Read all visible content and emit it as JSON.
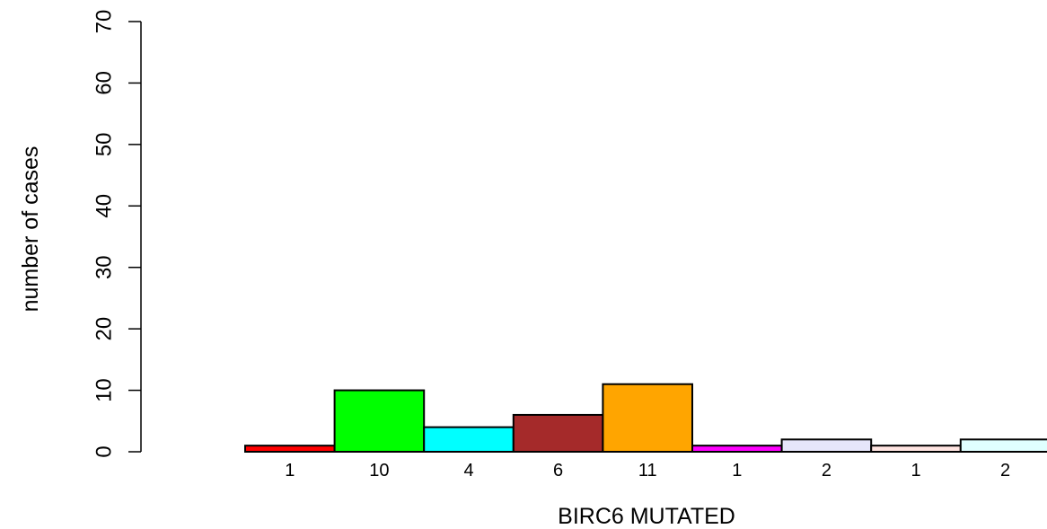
{
  "chart_data": {
    "type": "bar",
    "title": "",
    "xlabel": "BIRC6 MUTATED",
    "ylabel": "number of cases",
    "ylim": [
      0,
      70
    ],
    "yticks": [
      0,
      10,
      20,
      30,
      40,
      50,
      60,
      70
    ],
    "values": [
      1,
      10,
      4,
      6,
      11,
      1,
      2,
      1,
      2
    ],
    "categories": [
      "1",
      "10",
      "4",
      "6",
      "11",
      "1",
      "2",
      "1",
      "2"
    ],
    "colors": [
      "#ff0000",
      "#00ff00",
      "#00ffff",
      "#a52a2a",
      "#ffa500",
      "#ff00ff",
      "#e6e6fa",
      "#ffe4e1",
      "#e0ffff"
    ],
    "grid": false
  }
}
